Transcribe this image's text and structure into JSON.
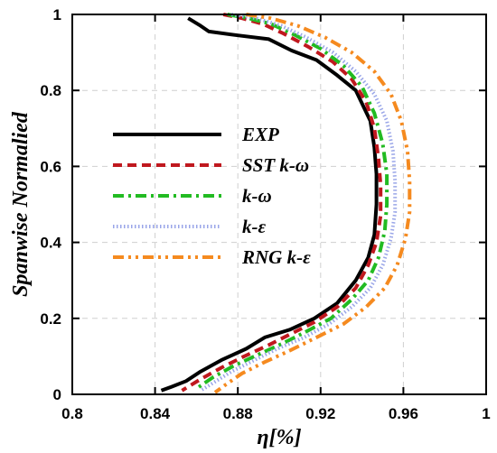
{
  "chart_data": {
    "type": "line",
    "xlabel": "η[%]",
    "ylabel": "Spanwise Normalied",
    "xlim": [
      0.8,
      1.0
    ],
    "ylim": [
      0,
      1
    ],
    "xticks": [
      "0.8",
      "0.84",
      "0.88",
      "0.92",
      "0.96",
      "1"
    ],
    "yticks": [
      "0",
      "0.2",
      "0.4",
      "0.6",
      "0.8",
      "1"
    ],
    "grid": true,
    "legend_position": "center-left",
    "series": [
      {
        "name": "EXP",
        "color": "#000000",
        "style": "solid",
        "points": [
          [
            0.856,
            0.99
          ],
          [
            0.862,
            0.97
          ],
          [
            0.866,
            0.955
          ],
          [
            0.88,
            0.945
          ],
          [
            0.895,
            0.935
          ],
          [
            0.906,
            0.905
          ],
          [
            0.918,
            0.88
          ],
          [
            0.928,
            0.84
          ],
          [
            0.937,
            0.8
          ],
          [
            0.944,
            0.72
          ],
          [
            0.946,
            0.65
          ],
          [
            0.947,
            0.58
          ],
          [
            0.947,
            0.5
          ],
          [
            0.946,
            0.42
          ],
          [
            0.943,
            0.36
          ],
          [
            0.937,
            0.3
          ],
          [
            0.928,
            0.24
          ],
          [
            0.917,
            0.2
          ],
          [
            0.905,
            0.17
          ],
          [
            0.893,
            0.15
          ],
          [
            0.884,
            0.12
          ],
          [
            0.872,
            0.09
          ],
          [
            0.862,
            0.06
          ],
          [
            0.855,
            0.035
          ],
          [
            0.848,
            0.02
          ],
          [
            0.843,
            0.01
          ]
        ]
      },
      {
        "name": "SST k-ω",
        "color": "#c0181e",
        "style": "dashed",
        "points": [
          [
            0.873,
            1.0
          ],
          [
            0.882,
            0.99
          ],
          [
            0.892,
            0.975
          ],
          [
            0.902,
            0.95
          ],
          [
            0.914,
            0.915
          ],
          [
            0.926,
            0.875
          ],
          [
            0.935,
            0.83
          ],
          [
            0.942,
            0.77
          ],
          [
            0.946,
            0.7
          ],
          [
            0.948,
            0.62
          ],
          [
            0.949,
            0.55
          ],
          [
            0.949,
            0.47
          ],
          [
            0.947,
            0.4
          ],
          [
            0.943,
            0.34
          ],
          [
            0.937,
            0.28
          ],
          [
            0.928,
            0.23
          ],
          [
            0.917,
            0.19
          ],
          [
            0.906,
            0.16
          ],
          [
            0.895,
            0.13
          ],
          [
            0.883,
            0.1
          ],
          [
            0.872,
            0.07
          ],
          [
            0.862,
            0.04
          ],
          [
            0.853,
            0.01
          ]
        ]
      },
      {
        "name": "k-ω",
        "color": "#22bb22",
        "style": "dashdot",
        "points": [
          [
            0.875,
            1.0
          ],
          [
            0.885,
            0.99
          ],
          [
            0.896,
            0.975
          ],
          [
            0.908,
            0.945
          ],
          [
            0.92,
            0.91
          ],
          [
            0.931,
            0.865
          ],
          [
            0.94,
            0.81
          ],
          [
            0.946,
            0.74
          ],
          [
            0.95,
            0.66
          ],
          [
            0.952,
            0.58
          ],
          [
            0.952,
            0.5
          ],
          [
            0.951,
            0.43
          ],
          [
            0.948,
            0.36
          ],
          [
            0.943,
            0.3
          ],
          [
            0.935,
            0.25
          ],
          [
            0.925,
            0.2
          ],
          [
            0.913,
            0.165
          ],
          [
            0.902,
            0.135
          ],
          [
            0.89,
            0.105
          ],
          [
            0.878,
            0.075
          ],
          [
            0.868,
            0.045
          ],
          [
            0.86,
            0.015
          ]
        ]
      },
      {
        "name": "k-ε",
        "color": "#9aa6e8",
        "style": "dotted",
        "points": [
          [
            0.877,
            1.0
          ],
          [
            0.889,
            0.99
          ],
          [
            0.901,
            0.97
          ],
          [
            0.913,
            0.94
          ],
          [
            0.926,
            0.9
          ],
          [
            0.937,
            0.85
          ],
          [
            0.946,
            0.79
          ],
          [
            0.952,
            0.72
          ],
          [
            0.955,
            0.64
          ],
          [
            0.956,
            0.56
          ],
          [
            0.956,
            0.48
          ],
          [
            0.954,
            0.41
          ],
          [
            0.95,
            0.34
          ],
          [
            0.944,
            0.28
          ],
          [
            0.935,
            0.23
          ],
          [
            0.924,
            0.185
          ],
          [
            0.912,
            0.15
          ],
          [
            0.899,
            0.12
          ],
          [
            0.888,
            0.09
          ],
          [
            0.877,
            0.06
          ],
          [
            0.868,
            0.03
          ],
          [
            0.862,
            0.01
          ]
        ]
      },
      {
        "name": "RNG k-ε",
        "color": "#f58a1f",
        "style": "dashdotdot",
        "points": [
          [
            0.884,
            1.0
          ],
          [
            0.896,
            0.99
          ],
          [
            0.909,
            0.97
          ],
          [
            0.922,
            0.94
          ],
          [
            0.935,
            0.9
          ],
          [
            0.946,
            0.85
          ],
          [
            0.954,
            0.79
          ],
          [
            0.959,
            0.72
          ],
          [
            0.962,
            0.64
          ],
          [
            0.963,
            0.56
          ],
          [
            0.963,
            0.48
          ],
          [
            0.961,
            0.41
          ],
          [
            0.957,
            0.34
          ],
          [
            0.951,
            0.28
          ],
          [
            0.942,
            0.23
          ],
          [
            0.931,
            0.185
          ],
          [
            0.918,
            0.15
          ],
          [
            0.905,
            0.115
          ],
          [
            0.893,
            0.085
          ],
          [
            0.882,
            0.055
          ],
          [
            0.874,
            0.025
          ],
          [
            0.869,
            0.005
          ]
        ]
      }
    ]
  }
}
